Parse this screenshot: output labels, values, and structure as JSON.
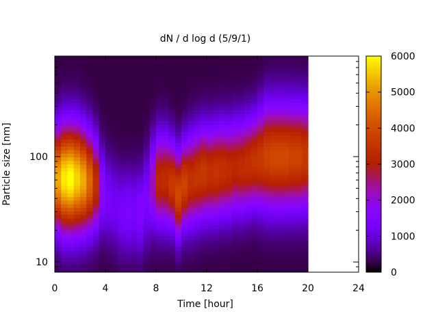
{
  "chart_data": {
    "type": "heatmap",
    "title": "dN / d log d (5/9/1)",
    "xlabel": "Time [hour]",
    "ylabel": "Particle size [nm]",
    "xlim": [
      0,
      24
    ],
    "x_ticks": [
      0,
      4,
      8,
      12,
      16,
      20,
      24
    ],
    "y_scale": "log",
    "ylim": [
      8,
      900
    ],
    "y_ticks": [
      10,
      100
    ],
    "data_x_range": [
      0,
      20
    ],
    "colorbar": {
      "min": 0,
      "max": 6000,
      "ticks": [
        0,
        1000,
        2000,
        3000,
        4000,
        5000,
        6000
      ],
      "colormap": "gnuplot",
      "colors": [
        "#000000",
        "#5a00b4",
        "#a020f0",
        "#c81e5a",
        "#e05010",
        "#f5a000",
        "#ffff00"
      ]
    },
    "time_columns": [
      0,
      0.5,
      1,
      1.5,
      2,
      2.5,
      3,
      3.5,
      4,
      4.5,
      5,
      5.5,
      6,
      6.5,
      7,
      7.5,
      8,
      8.5,
      9,
      9.5,
      10,
      10.5,
      11,
      11.5,
      12,
      12.5,
      13,
      13.5,
      14,
      14.5,
      15,
      15.5,
      16,
      16.5,
      17,
      17.5,
      18,
      18.5,
      19,
      19.5
    ],
    "mode_size_nm": [
      62,
      62,
      62,
      62,
      60,
      58,
      55,
      48,
      40,
      35,
      30,
      30,
      30,
      30,
      40,
      55,
      60,
      60,
      55,
      45,
      55,
      60,
      65,
      70,
      70,
      72,
      75,
      75,
      80,
      80,
      85,
      90,
      95,
      100,
      100,
      100,
      100,
      100,
      100,
      100
    ],
    "peak_concentration": [
      5000,
      5600,
      5800,
      5400,
      5000,
      4200,
      3200,
      1500,
      1100,
      1000,
      1100,
      1200,
      1100,
      1300,
      1200,
      2000,
      3000,
      3100,
      3400,
      3700,
      3600,
      3200,
      3300,
      3400,
      3200,
      3300,
      3200,
      3100,
      3000,
      3100,
      3200,
      3300,
      3400,
      3600,
      3700,
      3700,
      3700,
      3600,
      3600,
      3400
    ],
    "spread_log10": [
      0.32,
      0.34,
      0.34,
      0.34,
      0.33,
      0.32,
      0.3,
      0.28,
      0.28,
      0.28,
      0.28,
      0.28,
      0.28,
      0.28,
      0.3,
      0.3,
      0.3,
      0.3,
      0.28,
      0.28,
      0.28,
      0.3,
      0.3,
      0.3,
      0.3,
      0.3,
      0.3,
      0.3,
      0.3,
      0.3,
      0.3,
      0.3,
      0.32,
      0.34,
      0.34,
      0.34,
      0.34,
      0.34,
      0.34,
      0.34
    ]
  }
}
